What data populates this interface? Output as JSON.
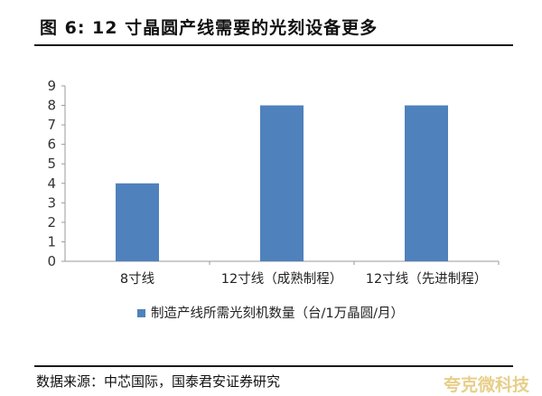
{
  "figure": {
    "title": "图 6:   12 寸晶圆产线需要的光刻设备更多",
    "source": "数据来源：中芯国际，国泰君安证券研究",
    "watermark": "夸克微科技"
  },
  "chart_data": {
    "type": "bar",
    "categories": [
      "8寸线",
      "12寸线（成熟制程）",
      "12寸线（先进制程）"
    ],
    "series": [
      {
        "name": "制造产线所需光刻机数量（台/1万晶圆/月）",
        "values": [
          4,
          8,
          8
        ]
      }
    ],
    "ylim": [
      0,
      9
    ],
    "yticks": [
      0,
      1,
      2,
      3,
      4,
      5,
      6,
      7,
      8,
      9
    ],
    "grid": false,
    "legend": "bottom",
    "color": "#4f81bd"
  }
}
